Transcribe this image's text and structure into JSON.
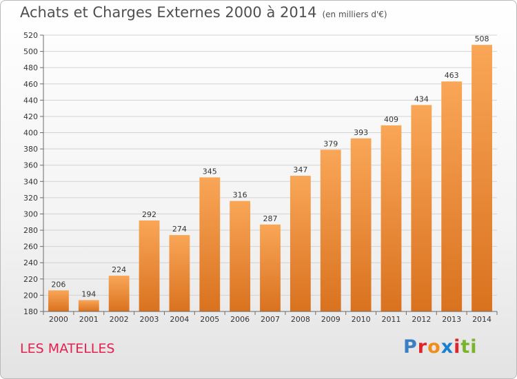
{
  "header": {
    "title": "Achats et Charges Externes 2000 à 2014",
    "unit": "(en milliers d'€)"
  },
  "footer": {
    "commune": "LES MATELLES",
    "brand": {
      "text": "Proxiti",
      "letter_colors": [
        "#3a7fc4",
        "#e0242a",
        "#f28c1b",
        "#1a7fcf",
        "#e0242a",
        "#7ab32e",
        "#7ab32e"
      ]
    }
  },
  "colors": {
    "bar_light": "#f9a657",
    "bar_dark": "#d9721f",
    "grid": "#d2d2d2",
    "axis": "#6a6a6a",
    "text": "#333333"
  },
  "chart_data": {
    "type": "bar",
    "categories": [
      "2000",
      "2001",
      "2002",
      "2003",
      "2004",
      "2005",
      "2006",
      "2007",
      "2008",
      "2009",
      "2010",
      "2011",
      "2012",
      "2013",
      "2014"
    ],
    "values": [
      206,
      194,
      224,
      292,
      274,
      345,
      316,
      287,
      347,
      379,
      393,
      409,
      434,
      463,
      508
    ],
    "ylim": [
      180,
      520
    ],
    "ytick_step": 20,
    "grid": true
  }
}
